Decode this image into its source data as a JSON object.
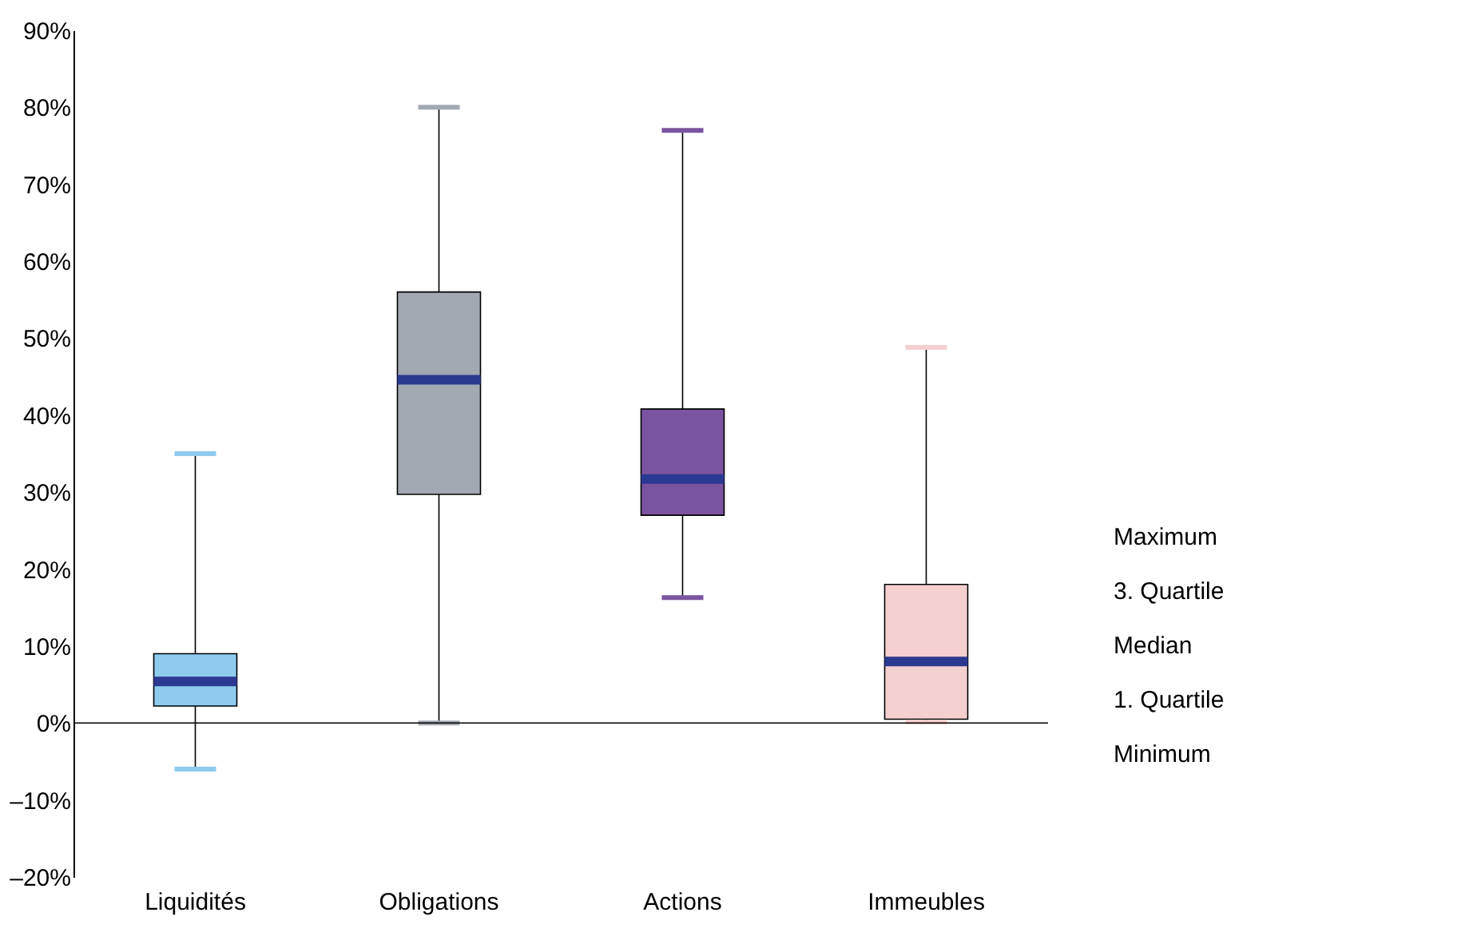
{
  "chart_data": {
    "type": "box",
    "categories": [
      "Liquidités",
      "Obligations",
      "Actions",
      "Immeubles"
    ],
    "colors": [
      "#8ecbef",
      "#a3a9b2",
      "#7b54a0",
      "#f5d0d0"
    ],
    "boxes": [
      {
        "low": -6,
        "q1": 2.2,
        "median": 5.4,
        "q3": 9,
        "high": 35
      },
      {
        "low": 0,
        "q1": 29.7,
        "median": 44.6,
        "q3": 56,
        "high": 80
      },
      {
        "low": 16.3,
        "q1": 27,
        "median": 31.7,
        "q3": 40.8,
        "high": 77
      },
      {
        "low": 0.1,
        "q1": 0.5,
        "median": 8,
        "q3": 18,
        "high": 48.8
      }
    ],
    "ylim": [
      -20,
      90
    ],
    "yticks": [
      {
        "value": -20,
        "label": "–20%"
      },
      {
        "value": -10,
        "label": "–10%"
      },
      {
        "value": 0,
        "label": "0%"
      },
      {
        "value": 10,
        "label": "10%"
      },
      {
        "value": 20,
        "label": "20%"
      },
      {
        "value": 30,
        "label": "30%"
      },
      {
        "value": 40,
        "label": "40%"
      },
      {
        "value": 50,
        "label": "50%"
      },
      {
        "value": 60,
        "label": "60%"
      },
      {
        "value": 70,
        "label": "70%"
      },
      {
        "value": 80,
        "label": "80%"
      },
      {
        "value": 90,
        "label": "90%"
      }
    ],
    "ref_lines": [
      {
        "axis": "y",
        "value": 0,
        "color": "#000000"
      }
    ],
    "annotations": [
      "Maximum",
      "3. Quartile",
      "Median",
      "1. Quartile",
      "Minimum"
    ],
    "grid": false
  }
}
